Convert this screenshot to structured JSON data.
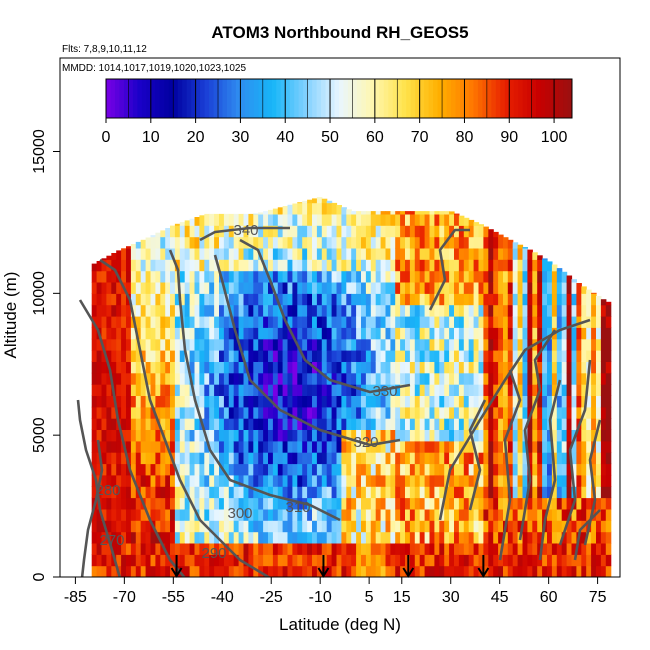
{
  "chart_data": {
    "type": "heatmap",
    "title": "ATOM3 Northbound RH_GEOS5",
    "flights_text": "Flts: 7,8,9,10,11,12",
    "dates_text": "MMDD: 1014,1017,1019,1020,1023,1025",
    "xlabel": "Latitude (deg N)",
    "ylabel": "Altitude (m)",
    "xlim": [
      -85,
      85
    ],
    "ylim": [
      0,
      17500
    ],
    "x_ticks": [
      -85,
      -70,
      -55,
      -40,
      -25,
      -10,
      5,
      15,
      30,
      45,
      60,
      75
    ],
    "y_ticks": [
      0,
      5000,
      10000,
      15000
    ],
    "colorbar": {
      "min": 0,
      "max": 104,
      "ticks": [
        0,
        10,
        20,
        30,
        40,
        50,
        60,
        70,
        80,
        90,
        100
      ],
      "colors": [
        "#7a00e6",
        "#1a00c8",
        "#0000a0",
        "#1a3fd6",
        "#2f8cf0",
        "#17b6f8",
        "#80d0ff",
        "#e8f6ff",
        "#fff7b0",
        "#ffe24a",
        "#ffb000",
        "#ff7800",
        "#e82000",
        "#c80000",
        "#9a1010"
      ]
    },
    "rh_field": {
      "description": "Relative humidity (%) along latitude/altitude curtain",
      "top_altitude_envelope": [
        [
          -80,
          11000
        ],
        [
          -72,
          11500
        ],
        [
          -64,
          11900
        ],
        [
          -55,
          12400
        ],
        [
          -45,
          12800
        ],
        [
          -30,
          12800
        ],
        [
          -20,
          13100
        ],
        [
          -10,
          13400
        ],
        [
          0,
          12900
        ],
        [
          15,
          12900
        ],
        [
          30,
          12900
        ],
        [
          40,
          12400
        ],
        [
          48,
          11900
        ],
        [
          55,
          11500
        ],
        [
          62,
          11000
        ],
        [
          70,
          10300
        ],
        [
          78,
          9700
        ]
      ],
      "lat_range": [
        -80,
        78
      ]
    },
    "theta_contours": [
      {
        "label": "270",
        "level": 270
      },
      {
        "label": "280",
        "level": 280
      },
      {
        "label": "290",
        "level": 290
      },
      {
        "label": "300",
        "level": 300
      },
      {
        "label": "310",
        "level": 310
      },
      {
        "label": "320",
        "level": 320
      },
      {
        "label": "330",
        "level": 330
      },
      {
        "label": "340",
        "level": 340
      }
    ],
    "markers": [
      {
        "lat": -54,
        "label": "arrow"
      },
      {
        "lat": -9,
        "label": "arrow"
      },
      {
        "lat": 17,
        "label": "arrow"
      },
      {
        "lat": 40,
        "label": "arrow"
      }
    ]
  }
}
